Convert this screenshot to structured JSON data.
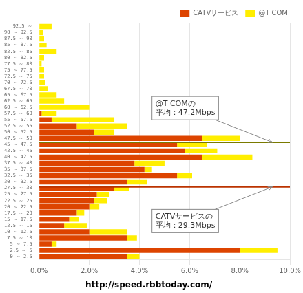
{
  "chart_data": {
    "type": "bar",
    "orientation": "horizontal",
    "stacked": true,
    "categories": [
      "0 ～ 2.5",
      "2.5 ～ 5",
      "5 ～ 7.5",
      "7.5 ～ 10",
      "10 ～ 12.5",
      "12.5 ～ 15",
      "15 ～ 17.5",
      "17.5 ～ 20",
      "20 ～ 22.5",
      "22.5 ～ 25",
      "25 ～ 27.5",
      "27.5 ～ 30",
      "30 ～ 32.5",
      "32.5 ～ 35",
      "35 ～ 37.5",
      "37.5 ～ 40",
      "40 ～ 42.5",
      "42.5 ～ 45",
      "45 ～ 47.5",
      "47.5 ～ 50",
      "50 ～ 52.5",
      "52.5 ～ 55",
      "55 ～ 57.5",
      "57.5 ～ 60",
      "60 ～ 62.5",
      "62.5 ～ 65",
      "65 ～ 67.5",
      "67.5 ～ 70",
      "70 ～ 72.5",
      "72.5 ～ 75",
      "75 ～ 77.5",
      "77.5 ～ 80",
      "80 ～ 82.5",
      "82.5 ～ 85",
      "85 ～ 87.5",
      "87.5 ～ 90",
      "90 ～ 92.5",
      "92.5 ～"
    ],
    "series": [
      {
        "name": "CATVサービス",
        "color": "#DD4400",
        "values": [
          3.5,
          8.0,
          0.5,
          3.5,
          2.0,
          1.0,
          1.2,
          1.5,
          2.0,
          2.2,
          2.3,
          3.0,
          3.5,
          5.5,
          4.2,
          3.8,
          6.5,
          5.8,
          5.5,
          6.5,
          2.2,
          1.5,
          0.5,
          0.1,
          0.0,
          0.0,
          0.0,
          0.0,
          0.0,
          0.0,
          0.0,
          0.0,
          0.0,
          0.0,
          0.0,
          0.0,
          0.0,
          0.0
        ]
      },
      {
        "name": "@T COM",
        "color": "#FFEE00",
        "values": [
          0.5,
          1.5,
          0.2,
          0.4,
          1.5,
          0.9,
          0.4,
          0.3,
          0.4,
          0.5,
          0.5,
          0.6,
          0.8,
          0.6,
          0.3,
          1.2,
          2.0,
          1.3,
          1.2,
          1.5,
          0.8,
          2.0,
          2.5,
          0.6,
          2.0,
          1.0,
          0.7,
          0.35,
          0.25,
          0.2,
          0.2,
          0.1,
          0.2,
          0.7,
          0.3,
          0.2,
          0.15,
          0.5
        ]
      }
    ],
    "xlim": [
      0,
      10
    ],
    "xticks": [
      {
        "value": 0,
        "label": "0.0%"
      },
      {
        "value": 2,
        "label": "2.0%"
      },
      {
        "value": 4,
        "label": "4.0%"
      },
      {
        "value": 6,
        "label": "6.0%"
      },
      {
        "value": 8,
        "label": "8.0%"
      },
      {
        "value": 10,
        "label": "10.0%"
      }
    ],
    "grid": true,
    "legend": "upper right",
    "bin_width": 2.5,
    "annotations": [
      {
        "text": "@T COMの\n平均：47.2Mbps",
        "value": 47.2,
        "color": "#7A7A00"
      },
      {
        "text": "CATVサービスの\n平均：29.3Mbps",
        "value": 29.3,
        "color": "#BB3300"
      }
    ],
    "footer": "http://speed.rbbtoday.com/"
  }
}
